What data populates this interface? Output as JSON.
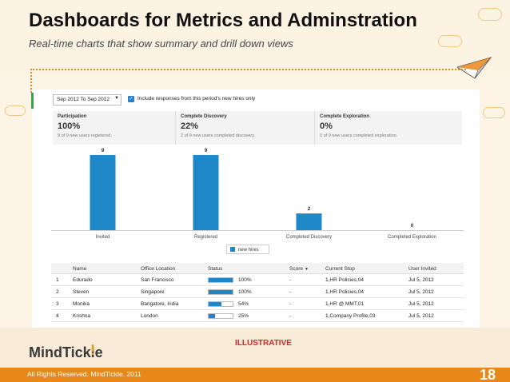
{
  "slide": {
    "title": "Dashboards for Metrics and Adminstration",
    "subtitle": "Real-time charts that show summary and drill down views",
    "illustrative": "ILLUSTRATIVE",
    "footer": "All Rights Reserved. MindTickle. 2011",
    "page_number": "18",
    "logo_text": "MindTickle",
    "logo_mark": "!"
  },
  "filters": {
    "date_range": "Sep 2012 To Sep 2012",
    "dropdown_arrow": "▼",
    "include_label": "Include responses from this period's new hires only",
    "check_mark": "✓"
  },
  "stats": [
    {
      "label": "Participation",
      "value": "100%",
      "sub": "9 of 9 new users registered."
    },
    {
      "label": "Complete Discovery",
      "value": "22%",
      "sub": "2 of 9 new users completed discovery."
    },
    {
      "label": "Complete Exploration",
      "value": "0%",
      "sub": "0 of 9 new users completed exploration."
    }
  ],
  "chart_data": {
    "type": "bar",
    "categories": [
      "Invited",
      "Registered",
      "Completed Discovery",
      "Completed Exploration"
    ],
    "series": [
      {
        "name": "new hires",
        "values": [
          9,
          9,
          2,
          0
        ]
      }
    ],
    "data_labels": [
      "9",
      "9",
      "2",
      "0"
    ],
    "ylim": [
      0,
      9
    ],
    "color": "#1e87c8",
    "legend": "bottom-center"
  },
  "legend": {
    "label": "new hires"
  },
  "table": {
    "headers": [
      "",
      "Name",
      "Office Location",
      "Status",
      "Score",
      "Current Stop",
      "User Invited"
    ],
    "sort_indicator": "▼",
    "rows": [
      {
        "num": "1",
        "name": "Edurado",
        "office": "San Francisco",
        "status": "100%",
        "progress": 100,
        "score": "-",
        "stop": "1,HR Policies,04",
        "invited": "Jul 5, 2012"
      },
      {
        "num": "2",
        "name": "Steven",
        "office": "Singapore",
        "status": "100%",
        "progress": 100,
        "score": "-",
        "stop": "1,HR Policies,04",
        "invited": "Jul 5, 2012"
      },
      {
        "num": "3",
        "name": "Monika",
        "office": "Bangalore, India",
        "status": "54%",
        "progress": 54,
        "score": "-",
        "stop": "1,HR @ MMT,01",
        "invited": "Jul 5, 2012"
      },
      {
        "num": "4",
        "name": "Krishna",
        "office": "London",
        "status": "25%",
        "progress": 25,
        "score": "-",
        "stop": "1,Company Profile,03",
        "invited": "Jul 5, 2012"
      }
    ]
  }
}
